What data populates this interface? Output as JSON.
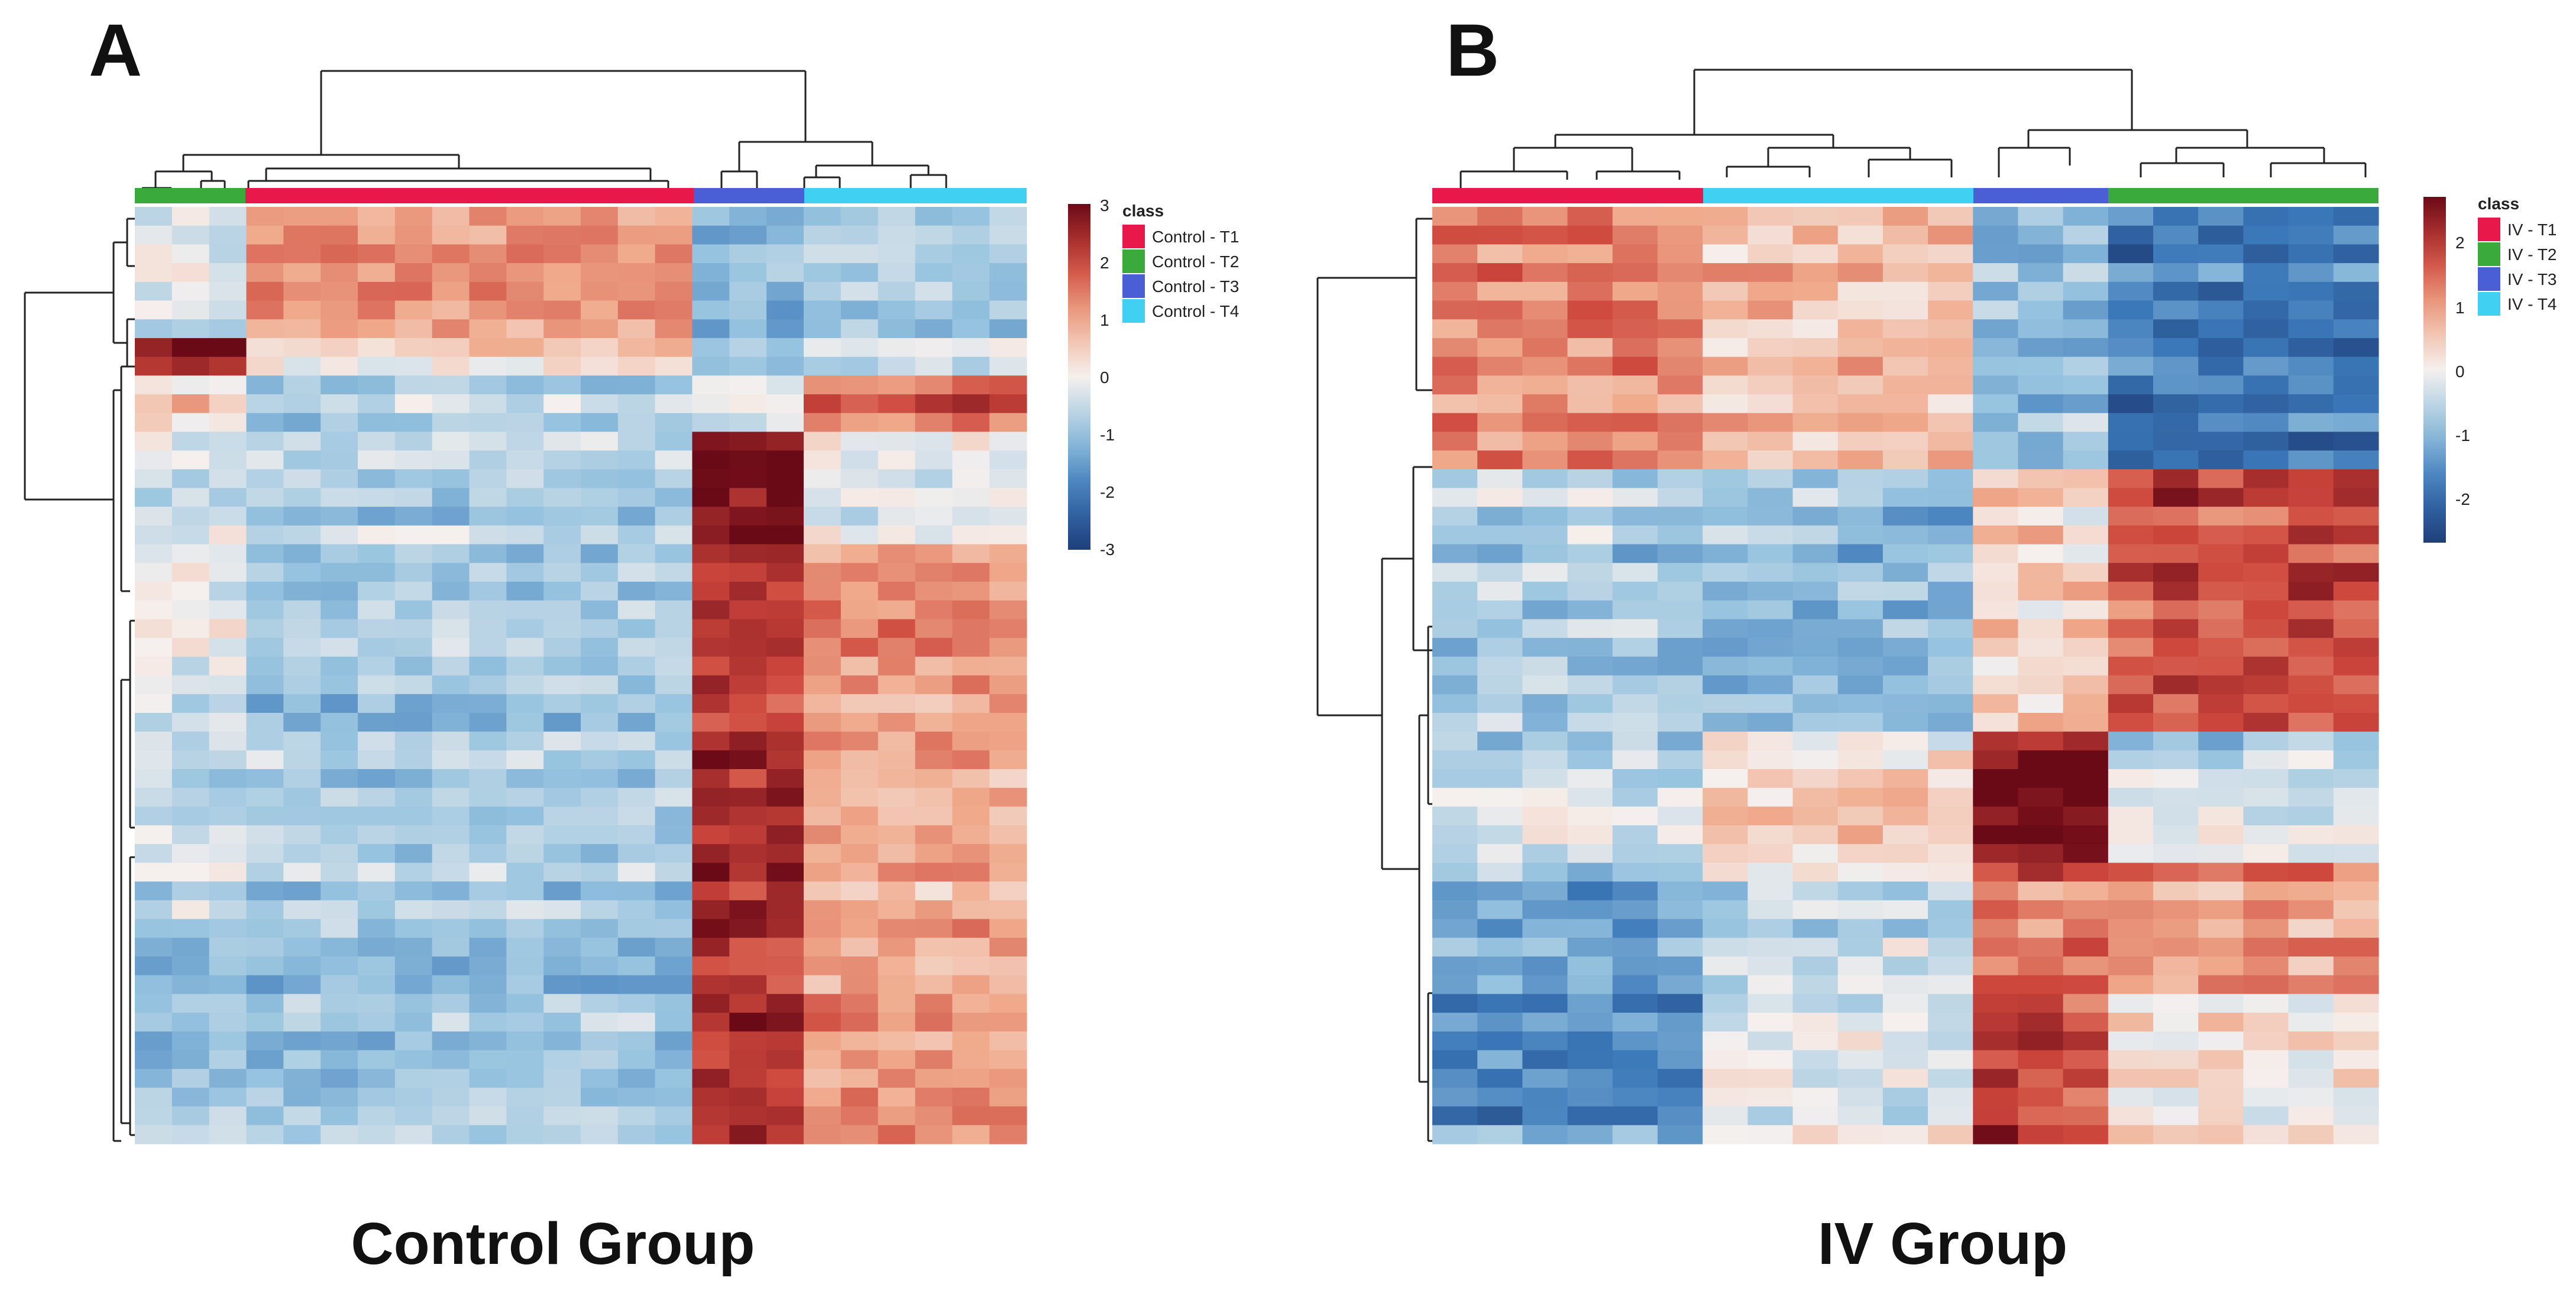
{
  "colors": {
    "t1": "#e8194a",
    "t2": "#3aaa3c",
    "t3": "#4a5fd6",
    "t4": "#3fd0f2",
    "scale_low": "#1f3f7a",
    "scale_mid": "#f5f0ee",
    "scale_high": "#6b0a17"
  },
  "chart_data": [
    {
      "type": "heatmap",
      "panel_label": "A",
      "title": "Control Group",
      "legend_title": "class",
      "classes": [
        "Control - T1",
        "Control - T2",
        "Control - T3",
        "Control - T4"
      ],
      "column_classes": [
        "Control - T2",
        "Control - T1",
        "Control - T3",
        "Control - T4"
      ],
      "column_counts": [
        3,
        12,
        3,
        6
      ],
      "row_count": 50,
      "scale_ticks": [
        "3",
        "2",
        "1",
        "0",
        "-1",
        "-2",
        "-3"
      ],
      "scale_range": [
        -3,
        3
      ],
      "row_blocks": [
        {
          "rows": 7,
          "values": [
            -0.3,
            1.2,
            -1.2,
            -0.8
          ]
        },
        {
          "rows": 2,
          "values": [
            2.6,
            0.3,
            -0.9,
            -0.3
          ]
        },
        {
          "rows": 3,
          "values": [
            0.5,
            -0.6,
            0.0,
            1.8
          ]
        },
        {
          "rows": 6,
          "values": [
            -0.4,
            -0.7,
            2.8,
            -0.2
          ]
        },
        {
          "rows": 10,
          "values": [
            -0.2,
            -0.9,
            2.2,
            1.2
          ]
        },
        {
          "rows": 10,
          "values": [
            -0.5,
            -0.8,
            2.4,
            0.9
          ]
        },
        {
          "rows": 12,
          "values": [
            -1.0,
            -1.0,
            2.3,
            1.1
          ]
        }
      ]
    },
    {
      "type": "heatmap",
      "panel_label": "B",
      "title": "IV Group",
      "legend_title": "class",
      "classes": [
        "IV - T1",
        "IV - T2",
        "IV - T3",
        "IV - T4"
      ],
      "column_classes": [
        "IV - T1",
        "IV - T4",
        "IV - T3",
        "IV - T2"
      ],
      "column_counts": [
        6,
        6,
        3,
        6
      ],
      "row_count": 50,
      "scale_ticks": [
        "2",
        "1",
        "0",
        "-1",
        "-2"
      ],
      "scale_range": [
        -2.5,
        2.5
      ],
      "row_blocks": [
        {
          "rows": 14,
          "values": [
            1.2,
            0.6,
            -0.8,
            -1.6
          ]
        },
        {
          "rows": 14,
          "values": [
            -0.7,
            -0.9,
            0.4,
            1.6
          ]
        },
        {
          "rows": 7,
          "values": [
            -0.5,
            0.2,
            2.3,
            -0.5
          ]
        },
        {
          "rows": 7,
          "values": [
            -1.0,
            -0.3,
            1.3,
            1.0
          ]
        },
        {
          "rows": 8,
          "values": [
            -1.3,
            -0.1,
            1.8,
            0.3
          ]
        }
      ]
    }
  ]
}
